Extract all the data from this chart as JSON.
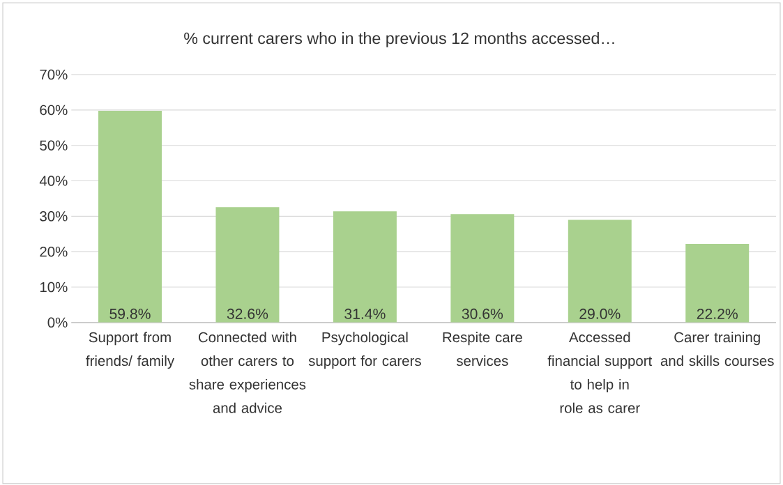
{
  "chart_data": {
    "type": "bar",
    "title": "% current carers who in the previous 12 months accessed…",
    "categories": [
      "Support from friends/ family",
      "Connected with other carers to share experiences and advice",
      "Psychological support for carers",
      "Respite care services",
      "Accessed financial support to help in role as carer",
      "Carer training and skills courses"
    ],
    "values": [
      59.8,
      32.6,
      31.4,
      30.6,
      29.0,
      22.2
    ],
    "value_labels": [
      "59.8%",
      "32.6%",
      "31.4%",
      "30.6%",
      "29.0%",
      "22.2%"
    ],
    "color": "#a9d18e",
    "ylim": [
      0,
      70
    ],
    "yticks": [
      {
        "value": 0,
        "label": "0%"
      },
      {
        "value": 10,
        "label": "10%"
      },
      {
        "value": 20,
        "label": "20%"
      },
      {
        "value": 30,
        "label": "30%"
      },
      {
        "value": 40,
        "label": "40%"
      },
      {
        "value": 50,
        "label": "50%"
      },
      {
        "value": 60,
        "label": "60%"
      },
      {
        "value": 70,
        "label": "70%"
      }
    ],
    "grid": "y"
  }
}
